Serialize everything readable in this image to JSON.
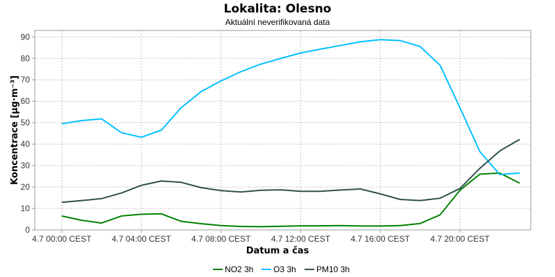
{
  "chart_data": {
    "type": "line",
    "title": "Lokalita: Olesno",
    "subtitle": "Aktuální neverifikovaná data",
    "xlabel": "Datum a čas",
    "ylabel": "Koncentrace [µg·m⁻³]",
    "ylim": [
      0,
      93
    ],
    "yticks": [
      0,
      10,
      20,
      30,
      40,
      50,
      60,
      70,
      80,
      90
    ],
    "x_hours": [
      0,
      1,
      2,
      3,
      4,
      5,
      6,
      7,
      8,
      9,
      10,
      11,
      12,
      13,
      14,
      15,
      16,
      17,
      18,
      19,
      20,
      21,
      22,
      23
    ],
    "x_ticks": [
      {
        "hour": 0,
        "label": "4.7 00:00 CEST"
      },
      {
        "hour": 4,
        "label": "4.7 04:00 CEST"
      },
      {
        "hour": 8,
        "label": "4.7 08:00 CEST"
      },
      {
        "hour": 12,
        "label": "4.7 12:00 CEST"
      },
      {
        "hour": 16,
        "label": "4.7 16:00 CEST"
      },
      {
        "hour": 20,
        "label": "4.7 20:00 CEST"
      }
    ],
    "grid": true,
    "legend_position": "bottom",
    "series": [
      {
        "name": "NO2 3h",
        "color": "#008000",
        "values": [
          6.5,
          4.5,
          3.2,
          6.5,
          7.3,
          7.5,
          4.0,
          2.9,
          2.0,
          1.6,
          1.5,
          1.7,
          1.9,
          1.9,
          2.0,
          1.8,
          1.8,
          2.0,
          3.0,
          7.0,
          18.5,
          26.0,
          26.5,
          21.8
        ]
      },
      {
        "name": "O3 3h",
        "color": "#00bfff",
        "values": [
          49.5,
          51.0,
          51.8,
          45.3,
          43.2,
          46.5,
          57.0,
          64.5,
          69.5,
          73.8,
          77.3,
          80.0,
          82.5,
          84.3,
          86.0,
          87.7,
          88.7,
          88.3,
          85.5,
          76.8,
          57.0,
          36.5,
          25.8,
          26.5
        ]
      },
      {
        "name": "PM10 3h",
        "color": "#2f4f4f",
        "values": [
          12.9,
          13.7,
          14.6,
          17.2,
          20.8,
          22.8,
          22.2,
          19.7,
          18.3,
          17.7,
          18.5,
          18.7,
          18.0,
          18.0,
          18.6,
          19.1,
          16.8,
          14.2,
          13.7,
          14.8,
          19.3,
          28.7,
          36.8,
          42.2
        ]
      }
    ]
  }
}
